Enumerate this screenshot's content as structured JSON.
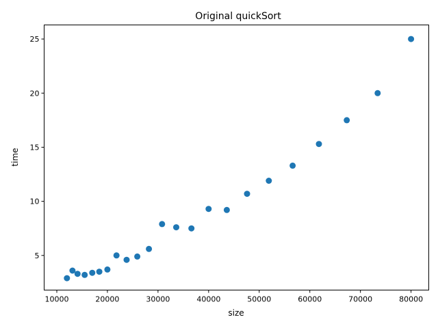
{
  "chart_data": {
    "type": "scatter",
    "title": "Original quickSort",
    "xlabel": "size",
    "ylabel": "time",
    "xlim": [
      7500,
      83500
    ],
    "ylim": [
      1.8,
      26.3
    ],
    "xticks": [
      10000,
      20000,
      30000,
      40000,
      50000,
      60000,
      70000,
      80000
    ],
    "yticks": [
      5,
      10,
      15,
      20,
      25
    ],
    "grid": false,
    "marker_color": "#1f77b4",
    "points": [
      {
        "x": 12000,
        "y": 2.9
      },
      {
        "x": 13100,
        "y": 3.6
      },
      {
        "x": 14100,
        "y": 3.3
      },
      {
        "x": 15500,
        "y": 3.2
      },
      {
        "x": 17000,
        "y": 3.4
      },
      {
        "x": 18400,
        "y": 3.5
      },
      {
        "x": 20000,
        "y": 3.7
      },
      {
        "x": 21800,
        "y": 5.0
      },
      {
        "x": 23800,
        "y": 4.6
      },
      {
        "x": 25900,
        "y": 4.9
      },
      {
        "x": 28200,
        "y": 5.6
      },
      {
        "x": 30800,
        "y": 7.9
      },
      {
        "x": 33600,
        "y": 7.6
      },
      {
        "x": 36600,
        "y": 7.5
      },
      {
        "x": 40000,
        "y": 9.3
      },
      {
        "x": 43600,
        "y": 9.2
      },
      {
        "x": 47600,
        "y": 10.7
      },
      {
        "x": 51900,
        "y": 11.9
      },
      {
        "x": 56600,
        "y": 13.3
      },
      {
        "x": 61800,
        "y": 15.3
      },
      {
        "x": 67300,
        "y": 17.5
      },
      {
        "x": 73400,
        "y": 20.0
      },
      {
        "x": 80000,
        "y": 25.0
      }
    ]
  }
}
